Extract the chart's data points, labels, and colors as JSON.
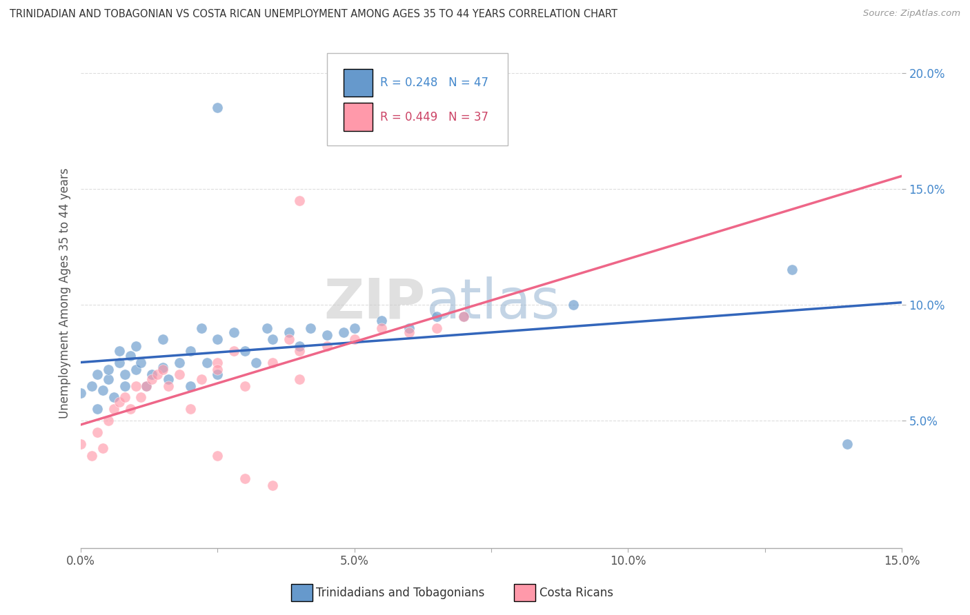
{
  "title": "TRINIDADIAN AND TOBAGONIAN VS COSTA RICAN UNEMPLOYMENT AMONG AGES 35 TO 44 YEARS CORRELATION CHART",
  "source": "Source: ZipAtlas.com",
  "ylabel": "Unemployment Among Ages 35 to 44 years",
  "xlim": [
    0.0,
    0.15
  ],
  "ylim": [
    -0.005,
    0.215
  ],
  "xticks": [
    0.0,
    0.025,
    0.05,
    0.075,
    0.1,
    0.125,
    0.15
  ],
  "yticks": [
    0.05,
    0.1,
    0.15,
    0.2
  ],
  "xticklabels": [
    "0.0%",
    "",
    "5.0%",
    "",
    "10.0%",
    "",
    "15.0%"
  ],
  "yticklabels": [
    "5.0%",
    "10.0%",
    "15.0%",
    "20.0%"
  ],
  "blue_color": "#6699CC",
  "pink_color": "#FF99AA",
  "blue_line_color": "#3366BB",
  "pink_line_color": "#EE6688",
  "dash_color": "#CCCCCC",
  "R_blue": 0.248,
  "N_blue": 47,
  "R_pink": 0.449,
  "N_pink": 37,
  "legend_label_blue": "Trinidadians and Tobagonians",
  "legend_label_pink": "Costa Ricans",
  "watermark_zip": "ZIP",
  "watermark_atlas": "atlas",
  "blue_scatter_x": [
    0.0,
    0.002,
    0.003,
    0.003,
    0.004,
    0.005,
    0.005,
    0.006,
    0.007,
    0.007,
    0.008,
    0.008,
    0.009,
    0.01,
    0.01,
    0.011,
    0.012,
    0.013,
    0.015,
    0.015,
    0.016,
    0.018,
    0.02,
    0.02,
    0.022,
    0.023,
    0.025,
    0.025,
    0.028,
    0.03,
    0.032,
    0.034,
    0.035,
    0.038,
    0.04,
    0.042,
    0.045,
    0.048,
    0.05,
    0.055,
    0.06,
    0.065,
    0.025,
    0.07,
    0.09,
    0.13,
    0.14
  ],
  "blue_scatter_y": [
    0.062,
    0.065,
    0.055,
    0.07,
    0.063,
    0.068,
    0.072,
    0.06,
    0.075,
    0.08,
    0.065,
    0.07,
    0.078,
    0.072,
    0.082,
    0.075,
    0.065,
    0.07,
    0.073,
    0.085,
    0.068,
    0.075,
    0.065,
    0.08,
    0.09,
    0.075,
    0.07,
    0.085,
    0.088,
    0.08,
    0.075,
    0.09,
    0.085,
    0.088,
    0.082,
    0.09,
    0.087,
    0.088,
    0.09,
    0.093,
    0.09,
    0.095,
    0.185,
    0.095,
    0.1,
    0.115,
    0.04
  ],
  "pink_scatter_x": [
    0.0,
    0.002,
    0.003,
    0.004,
    0.005,
    0.006,
    0.007,
    0.008,
    0.009,
    0.01,
    0.011,
    0.012,
    0.013,
    0.014,
    0.015,
    0.016,
    0.018,
    0.02,
    0.022,
    0.025,
    0.025,
    0.028,
    0.03,
    0.035,
    0.038,
    0.04,
    0.045,
    0.05,
    0.055,
    0.06,
    0.065,
    0.07,
    0.04,
    0.025,
    0.03,
    0.035,
    0.04
  ],
  "pink_scatter_y": [
    0.04,
    0.035,
    0.045,
    0.038,
    0.05,
    0.055,
    0.058,
    0.06,
    0.055,
    0.065,
    0.06,
    0.065,
    0.068,
    0.07,
    0.072,
    0.065,
    0.07,
    0.055,
    0.068,
    0.075,
    0.072,
    0.08,
    0.065,
    0.075,
    0.085,
    0.08,
    0.082,
    0.085,
    0.09,
    0.088,
    0.09,
    0.095,
    0.145,
    0.035,
    0.025,
    0.022,
    0.068
  ]
}
